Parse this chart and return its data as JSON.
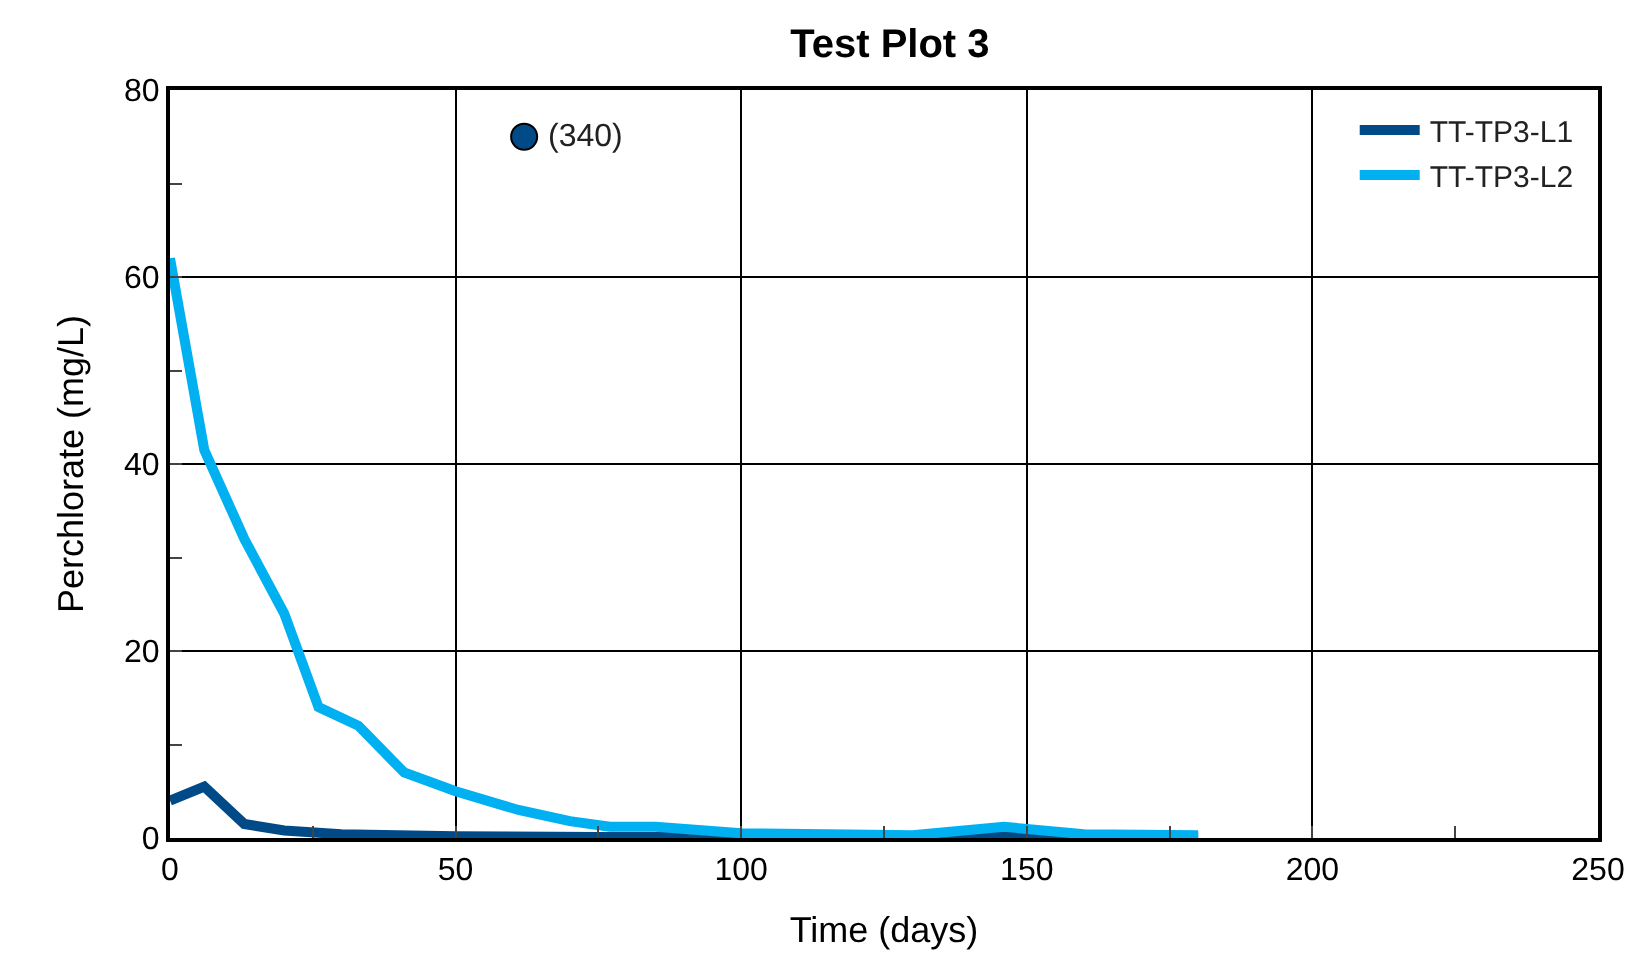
{
  "chart_data": {
    "type": "line",
    "title": "Test Plot 3",
    "xlabel": "Time (days)",
    "ylabel": "Perchlorate (mg/L)",
    "xlim": [
      0,
      250
    ],
    "xticks": [
      0,
      50,
      100,
      150,
      200,
      250
    ],
    "ylim": [
      0,
      80
    ],
    "yticks": [
      0,
      20,
      40,
      60,
      80
    ],
    "grid": true,
    "legend": "top right",
    "marker": "none",
    "series": [
      {
        "name": "TT-TP3-L1",
        "color": "#004b87",
        "x": [
          0,
          6,
          13,
          20,
          30,
          50,
          75,
          100,
          130,
          150,
          180
        ],
        "values": [
          4,
          5.5,
          1.5,
          0.8,
          0.4,
          0.2,
          0.1,
          0.1,
          0.1,
          0.1,
          0.1
        ]
      },
      {
        "name": "TT-TP3-L2",
        "color": "#00b0f0",
        "x": [
          0,
          6,
          13,
          20,
          26,
          33,
          41,
          50,
          61,
          70,
          77,
          85,
          100,
          115,
          130,
          146,
          160,
          180
        ],
        "values": [
          62,
          41.5,
          32,
          24,
          14,
          12,
          7,
          5,
          3,
          1.8,
          1.2,
          1.2,
          0.5,
          0.4,
          0.3,
          1.2,
          0.4,
          0.3
        ]
      },
      {
        "type": "scatter",
        "color": "#004b87",
        "marker": "circle",
        "x": [
          62
        ],
        "values": [
          75
        ]
      }
    ],
    "annotations": [
      {
        "text": "(340)",
        "x": 62,
        "y": 75
      }
    ]
  }
}
